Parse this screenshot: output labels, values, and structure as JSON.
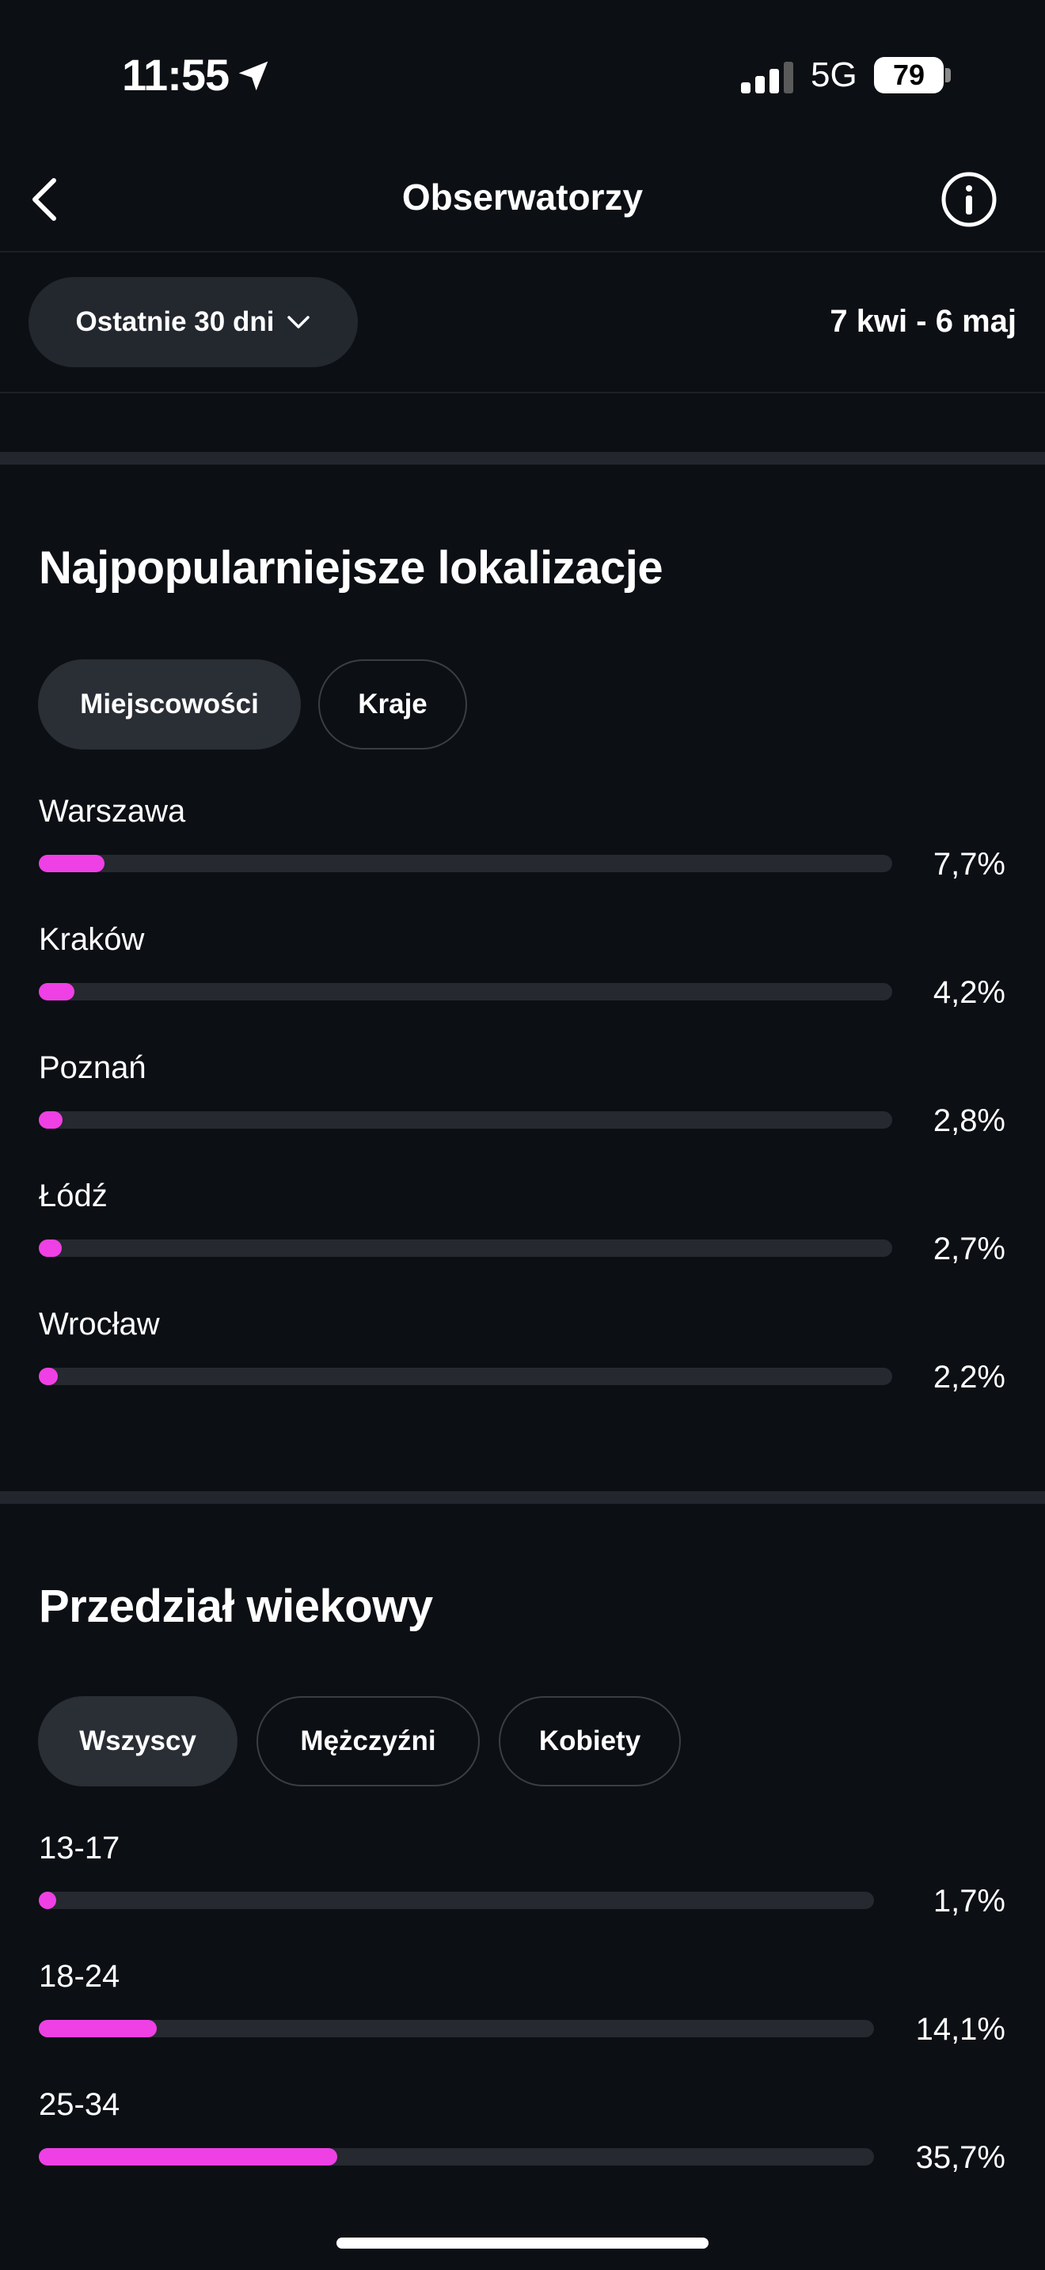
{
  "status_bar": {
    "time": "11:55",
    "network": "5G",
    "battery": "79",
    "icons": [
      "location-arrow-icon",
      "signal-bars-icon",
      "battery-icon"
    ]
  },
  "header": {
    "title": "Obserwatorzy",
    "back_icon": "chevron-left-icon",
    "info_icon": "info-circle-icon"
  },
  "filter": {
    "range_label": "Ostatnie 30 dni",
    "date_range": "7 kwi - 6 maj"
  },
  "locations": {
    "title": "Najpopularniejsze lokalizacje",
    "tabs": [
      {
        "label": "Miejscowości",
        "active": true
      },
      {
        "label": "Kraje",
        "active": false
      }
    ],
    "items": [
      {
        "label": "Warszawa",
        "value": "7,7%",
        "fraction": 0.077
      },
      {
        "label": "Kraków",
        "value": "4,2%",
        "fraction": 0.042
      },
      {
        "label": "Poznań",
        "value": "2,8%",
        "fraction": 0.028
      },
      {
        "label": "Łódź",
        "value": "2,7%",
        "fraction": 0.027
      },
      {
        "label": "Wrocław",
        "value": "2,2%",
        "fraction": 0.022
      }
    ]
  },
  "age": {
    "title": "Przedział wiekowy",
    "tabs": [
      {
        "label": "Wszyscy",
        "active": true
      },
      {
        "label": "Mężczyźni",
        "active": false
      },
      {
        "label": "Kobiety",
        "active": false
      }
    ],
    "items": [
      {
        "label": "13-17",
        "value": "1,7%",
        "fraction": 0.017
      },
      {
        "label": "18-24",
        "value": "14,1%",
        "fraction": 0.141
      },
      {
        "label": "25-34",
        "value": "35,7%",
        "fraction": 0.357
      }
    ]
  },
  "colors": {
    "background": "#0c0f14",
    "accent_bar": "#ee40e4",
    "track": "#26292f",
    "chip_active": "#2a2e35"
  }
}
